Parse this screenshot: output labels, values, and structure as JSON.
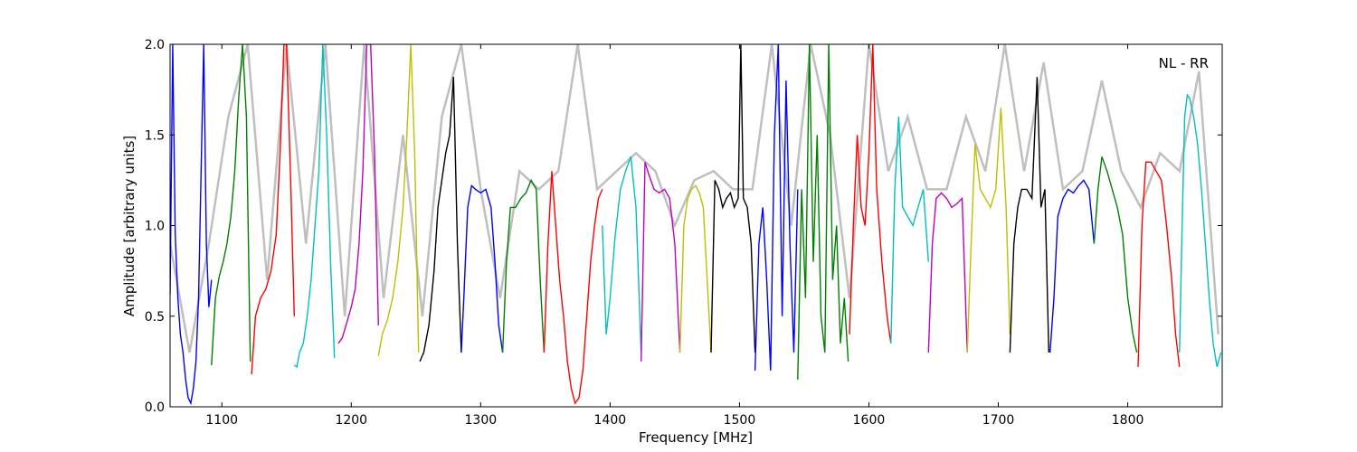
{
  "chart_data": {
    "type": "line",
    "title": "",
    "annotation": "NL - RR",
    "xlabel": "Frequency [MHz]",
    "ylabel": "Amplitude [arbitrary units]",
    "xlim": [
      1060,
      1873
    ],
    "ylim": [
      0,
      2.0
    ],
    "xticks": [
      1100,
      1200,
      1300,
      1400,
      1500,
      1600,
      1700,
      1800
    ],
    "yticks": [
      0.0,
      0.5,
      1.0,
      1.5,
      2.0
    ],
    "xtick_labels": [
      "1100",
      "1200",
      "1300",
      "1400",
      "1500",
      "1600",
      "1700",
      "1800"
    ],
    "ytick_labels": [
      "0.0",
      "0.5",
      "1.0",
      "1.5",
      "2.0"
    ],
    "grid": false,
    "colors": {
      "background_trace": "#bfbfbf",
      "blue": "#0000ff",
      "green": "#008000",
      "red": "#ff0000",
      "cyan": "#00bfbf",
      "magenta": "#bf00bf",
      "olive": "#bfbf00",
      "black": "#000000"
    },
    "series": [
      {
        "color": "blue",
        "x": [
          1060,
          1062,
          1064,
          1066,
          1068,
          1070,
          1072,
          1074,
          1076,
          1078,
          1080,
          1082,
          1084,
          1086,
          1088,
          1090,
          1092
        ],
        "y": [
          0.62,
          2.0,
          0.95,
          0.6,
          0.4,
          0.3,
          0.15,
          0.05,
          0.02,
          0.1,
          0.25,
          0.6,
          1.3,
          2.0,
          0.9,
          0.55,
          0.7
        ]
      },
      {
        "color": "green",
        "x": [
          1092,
          1095,
          1098,
          1101,
          1104,
          1107,
          1110,
          1113,
          1116,
          1119,
          1122
        ],
        "y": [
          0.23,
          0.6,
          0.72,
          0.8,
          0.9,
          1.05,
          1.3,
          1.7,
          2.0,
          1.6,
          0.25
        ]
      },
      {
        "color": "red",
        "x": [
          1123,
          1126,
          1130,
          1134,
          1138,
          1142,
          1145,
          1148,
          1150,
          1153,
          1156
        ],
        "y": [
          0.18,
          0.5,
          0.6,
          0.65,
          0.75,
          0.95,
          1.4,
          2.0,
          2.0,
          1.3,
          0.5
        ]
      },
      {
        "color": "cyan",
        "x": [
          1156,
          1158,
          1160,
          1163,
          1166,
          1169,
          1172,
          1175,
          1178,
          1181,
          1184,
          1187
        ],
        "y": [
          0.23,
          0.22,
          0.3,
          0.35,
          0.5,
          0.7,
          1.0,
          1.3,
          2.0,
          1.5,
          0.8,
          0.27
        ]
      },
      {
        "color": "magenta",
        "x": [
          1190,
          1193,
          1196,
          1200,
          1203,
          1206,
          1209,
          1212,
          1215,
          1218,
          1221
        ],
        "y": [
          0.35,
          0.38,
          0.45,
          0.55,
          0.65,
          0.9,
          1.3,
          2.0,
          2.0,
          1.4,
          0.45
        ]
      },
      {
        "color": "olive",
        "x": [
          1221,
          1224,
          1228,
          1232,
          1236,
          1240,
          1243,
          1246,
          1249,
          1252
        ],
        "y": [
          0.28,
          0.4,
          0.48,
          0.6,
          0.8,
          1.1,
          1.5,
          2.0,
          1.4,
          0.3
        ]
      },
      {
        "color": "black",
        "x": [
          1253,
          1256,
          1260,
          1264,
          1267,
          1270,
          1273,
          1276,
          1279,
          1282,
          1285
        ],
        "y": [
          0.25,
          0.3,
          0.45,
          0.75,
          1.1,
          1.25,
          1.4,
          1.5,
          1.82,
          0.9,
          0.3
        ]
      },
      {
        "color": "blue",
        "x": [
          1285,
          1287,
          1290,
          1293,
          1296,
          1300,
          1304,
          1308,
          1311,
          1314,
          1317
        ],
        "y": [
          0.3,
          0.6,
          1.1,
          1.22,
          1.2,
          1.18,
          1.2,
          1.1,
          0.8,
          0.45,
          0.3
        ]
      },
      {
        "color": "green",
        "x": [
          1317,
          1320,
          1323,
          1327,
          1331,
          1335,
          1339,
          1343,
          1346,
          1349
        ],
        "y": [
          0.3,
          0.8,
          1.1,
          1.1,
          1.15,
          1.18,
          1.25,
          1.2,
          0.7,
          0.3
        ]
      },
      {
        "color": "red",
        "x": [
          1349,
          1352,
          1355,
          1358,
          1361,
          1364,
          1367,
          1370,
          1373,
          1376,
          1379,
          1382,
          1385,
          1388,
          1391,
          1394
        ],
        "y": [
          0.3,
          0.9,
          1.3,
          1.0,
          0.7,
          0.5,
          0.25,
          0.1,
          0.02,
          0.05,
          0.2,
          0.5,
          0.8,
          1.0,
          1.15,
          1.2
        ]
      },
      {
        "color": "cyan",
        "x": [
          1394,
          1397,
          1400,
          1404,
          1408,
          1412,
          1416,
          1420,
          1424
        ],
        "y": [
          1.0,
          0.4,
          0.6,
          0.95,
          1.2,
          1.3,
          1.38,
          1.1,
          0.3
        ]
      },
      {
        "color": "magenta",
        "x": [
          1424,
          1427,
          1430,
          1434,
          1438,
          1442,
          1446,
          1450,
          1454
        ],
        "y": [
          0.25,
          1.35,
          1.28,
          1.2,
          1.18,
          1.2,
          1.15,
          0.9,
          0.3
        ]
      },
      {
        "color": "olive",
        "x": [
          1454,
          1457,
          1460,
          1463,
          1466,
          1469,
          1472,
          1475,
          1478
        ],
        "y": [
          0.3,
          1.0,
          1.15,
          1.2,
          1.22,
          1.18,
          1.1,
          0.7,
          0.3
        ]
      },
      {
        "color": "black",
        "x": [
          1478,
          1481,
          1484,
          1487,
          1490,
          1493,
          1496,
          1499,
          1501,
          1503,
          1506,
          1509,
          1512
        ],
        "y": [
          0.3,
          1.25,
          1.2,
          1.1,
          1.15,
          1.18,
          1.1,
          1.15,
          2.0,
          1.15,
          1.1,
          0.9,
          0.3
        ]
      },
      {
        "color": "blue",
        "x": [
          1512,
          1515,
          1518,
          1521,
          1524,
          1527,
          1530,
          1533,
          1536,
          1539,
          1542,
          1545
        ],
        "y": [
          0.2,
          0.9,
          1.1,
          0.7,
          0.2,
          1.5,
          2.0,
          0.5,
          1.8,
          0.9,
          0.3,
          1.2
        ]
      },
      {
        "color": "green",
        "x": [
          1545,
          1548,
          1551,
          1554,
          1557,
          1560,
          1563,
          1566,
          1569,
          1572,
          1575,
          1578,
          1581,
          1584
        ],
        "y": [
          0.15,
          1.2,
          0.6,
          2.0,
          0.8,
          1.5,
          0.5,
          0.3,
          2.0,
          0.7,
          1.0,
          0.35,
          0.6,
          0.25
        ]
      },
      {
        "color": "red",
        "x": [
          1585,
          1588,
          1591,
          1594,
          1597,
          1600,
          1603,
          1606,
          1610,
          1614,
          1617
        ],
        "y": [
          0.4,
          1.0,
          1.5,
          1.1,
          1.0,
          1.4,
          2.0,
          1.2,
          0.8,
          0.5,
          0.35
        ]
      },
      {
        "color": "cyan",
        "x": [
          1617,
          1620,
          1623,
          1626,
          1630,
          1634,
          1638,
          1642,
          1646
        ],
        "y": [
          0.35,
          1.2,
          1.6,
          1.1,
          1.05,
          1.0,
          1.1,
          1.2,
          0.8
        ]
      },
      {
        "color": "magenta",
        "x": [
          1646,
          1649,
          1652,
          1656,
          1660,
          1664,
          1668,
          1672,
          1676
        ],
        "y": [
          0.3,
          0.9,
          1.15,
          1.18,
          1.15,
          1.1,
          1.12,
          1.15,
          0.3
        ]
      },
      {
        "color": "olive",
        "x": [
          1676,
          1679,
          1682,
          1686,
          1690,
          1694,
          1698,
          1702,
          1706,
          1709
        ],
        "y": [
          0.3,
          0.9,
          1.45,
          1.2,
          1.15,
          1.1,
          1.2,
          1.65,
          1.1,
          0.4
        ]
      },
      {
        "color": "black",
        "x": [
          1709,
          1712,
          1715,
          1718,
          1722,
          1726,
          1730,
          1733,
          1736,
          1739
        ],
        "y": [
          0.3,
          0.9,
          1.1,
          1.2,
          1.2,
          1.15,
          1.82,
          1.1,
          1.2,
          0.3
        ]
      },
      {
        "color": "blue",
        "x": [
          1740,
          1743,
          1746,
          1750,
          1754,
          1758,
          1762,
          1766,
          1770,
          1774
        ],
        "y": [
          0.3,
          0.6,
          1.05,
          1.15,
          1.2,
          1.18,
          1.22,
          1.25,
          1.2,
          0.9
        ]
      },
      {
        "color": "green",
        "x": [
          1774,
          1777,
          1780,
          1784,
          1788,
          1792,
          1796,
          1800,
          1804,
          1807
        ],
        "y": [
          0.9,
          1.2,
          1.38,
          1.3,
          1.2,
          1.1,
          0.95,
          0.6,
          0.4,
          0.3
        ]
      },
      {
        "color": "red",
        "x": [
          1808,
          1811,
          1814,
          1818,
          1822,
          1826,
          1830,
          1834,
          1837,
          1840
        ],
        "y": [
          0.22,
          1.0,
          1.35,
          1.35,
          1.3,
          1.25,
          1.0,
          0.7,
          0.4,
          0.22
        ]
      },
      {
        "color": "cyan",
        "x": [
          1840,
          1842,
          1844,
          1846,
          1848,
          1851,
          1854,
          1857,
          1860,
          1863,
          1866,
          1869,
          1872
        ],
        "y": [
          0.3,
          1.0,
          1.6,
          1.72,
          1.7,
          1.6,
          1.45,
          1.2,
          0.9,
          0.6,
          0.35,
          0.22,
          0.3
        ]
      }
    ],
    "background_trace": {
      "x": [
        1060,
        1075,
        1090,
        1105,
        1120,
        1135,
        1150,
        1165,
        1180,
        1195,
        1210,
        1225,
        1240,
        1255,
        1270,
        1285,
        1300,
        1315,
        1330,
        1345,
        1360,
        1375,
        1390,
        1405,
        1420,
        1435,
        1450,
        1465,
        1480,
        1495,
        1510,
        1525,
        1540,
        1555,
        1570,
        1585,
        1600,
        1615,
        1630,
        1645,
        1660,
        1675,
        1690,
        1705,
        1720,
        1735,
        1750,
        1765,
        1780,
        1795,
        1810,
        1825,
        1840,
        1855,
        1870
      ],
      "y": [
        0.9,
        0.3,
        0.9,
        1.6,
        2.0,
        0.7,
        2.0,
        0.9,
        2.0,
        0.5,
        2.0,
        0.6,
        1.5,
        0.5,
        1.6,
        2.0,
        1.2,
        0.6,
        1.3,
        1.2,
        1.3,
        2.0,
        1.2,
        1.3,
        1.4,
        1.3,
        1.0,
        1.25,
        1.3,
        1.2,
        1.2,
        2.0,
        1.0,
        2.0,
        1.5,
        0.6,
        2.0,
        1.3,
        1.6,
        1.2,
        1.2,
        1.6,
        1.3,
        2.0,
        1.3,
        1.9,
        1.2,
        1.3,
        1.8,
        1.3,
        1.1,
        1.4,
        1.3,
        1.85,
        0.4
      ]
    }
  }
}
